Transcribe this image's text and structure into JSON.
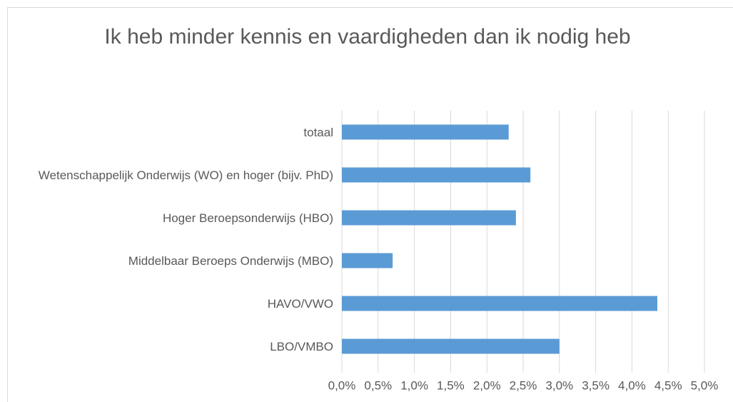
{
  "chart_data": {
    "type": "bar",
    "orientation": "horizontal",
    "title": "Ik heb minder kennis en vaardigheden dan ik nodig heb",
    "categories": [
      "totaal",
      "Wetenschappelijk Onderwijs (WO) en hoger (bijv. PhD)",
      "Hoger Beroepsonderwijs (HBO)",
      "Middelbaar Beroeps Onderwijs (MBO)",
      "HAVO/VWO",
      "LBO/VMBO"
    ],
    "values": [
      2.3,
      2.6,
      2.4,
      0.7,
      4.35,
      3.0
    ],
    "color": "#5b9bd5",
    "xlim": [
      0,
      5
    ],
    "xticks": [
      {
        "value": 0,
        "label": "0,0%"
      },
      {
        "value": 0.5,
        "label": "0,5%"
      },
      {
        "value": 1,
        "label": "1,0%"
      },
      {
        "value": 1.5,
        "label": "1,5%"
      },
      {
        "value": 2,
        "label": "2,0%"
      },
      {
        "value": 2.5,
        "label": "2,5%"
      },
      {
        "value": 3,
        "label": "3,0%"
      },
      {
        "value": 3.5,
        "label": "3,5%"
      },
      {
        "value": 4,
        "label": "4,0%"
      },
      {
        "value": 4.5,
        "label": "4,5%"
      },
      {
        "value": 5,
        "label": "5,0%"
      }
    ],
    "grid": true
  }
}
